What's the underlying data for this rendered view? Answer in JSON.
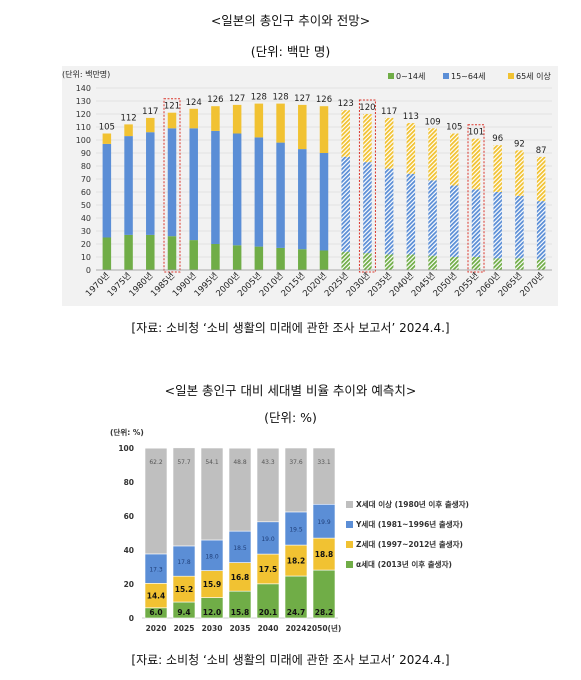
{
  "chart1": {
    "title": "<일본의 총인구 추이와 전망>",
    "subtitle": "(단위: 백만 명)",
    "unit_label": "(단위: 백만명)",
    "source": "[자료: 소비청 ‘소비 생활의 미래에 관한 조사 보고서’ 2024.4.]"
  },
  "chart2": {
    "title": "<일본 총인구 대비 세대별 비율 추이와 예측치>",
    "subtitle": "(단위: %)",
    "unit_label": "(단위: %)",
    "source": "[자료: 소비청 ‘소비 생활의 미래에 관한 조사 보고서’ 2024.4.]"
  },
  "colors": {
    "green": "#70ad47",
    "blue": "#5b8ed6",
    "yellow": "#f1c232",
    "gray": "#bfbfbf",
    "highlight": "#d9342b"
  },
  "chart_data": [
    {
      "type": "bar",
      "stacked": true,
      "title": "<일본의 총인구 추이와 전망>",
      "ylabel": "(단위: 백만명)",
      "ylim": [
        0,
        140
      ],
      "yticks": [
        0,
        10,
        20,
        30,
        40,
        50,
        60,
        70,
        80,
        90,
        100,
        110,
        120,
        130,
        140
      ],
      "grid": true,
      "legend_position": "top-right",
      "categories": [
        "1970년",
        "1975년",
        "1980년",
        "1985년",
        "1990년",
        "1995년",
        "2000년",
        "2005년",
        "2010년",
        "2015년",
        "2020년",
        "2025년",
        "2030년",
        "2035년",
        "2040년",
        "2045년",
        "2050년",
        "2055년",
        "2060년",
        "2065년",
        "2070년"
      ],
      "totals": [
        105,
        112,
        117,
        121,
        124,
        126,
        127,
        128,
        128,
        127,
        126,
        123,
        120,
        117,
        113,
        109,
        105,
        101,
        96,
        92,
        87
      ],
      "projection_from": "2025년",
      "highlighted": [
        "1985년",
        "2030년",
        "2055년"
      ],
      "series": [
        {
          "name": "0~14세",
          "values": [
            25,
            27,
            27,
            26,
            23,
            20,
            19,
            18,
            17,
            16,
            15,
            14,
            13,
            12,
            12,
            11,
            10,
            10,
            9,
            9,
            8
          ]
        },
        {
          "name": "15~64세",
          "values": [
            72,
            76,
            79,
            83,
            86,
            87,
            86,
            84,
            81,
            77,
            75,
            73,
            70,
            66,
            62,
            58,
            55,
            52,
            51,
            48,
            45
          ]
        },
        {
          "name": "65세 이상",
          "values": [
            8,
            9,
            11,
            12,
            15,
            19,
            22,
            26,
            30,
            34,
            36,
            36,
            37,
            39,
            39,
            40,
            40,
            39,
            36,
            35,
            34
          ]
        }
      ]
    },
    {
      "type": "bar",
      "stacked": true,
      "title": "<일본 총인구 대비 세대별 비율 추이와 예측치>",
      "ylabel": "(단위: %)",
      "ylim": [
        0,
        100
      ],
      "yticks": [
        0,
        20,
        40,
        60,
        80,
        100
      ],
      "legend_position": "right",
      "categories": [
        "2020",
        "2025",
        "2030",
        "2035",
        "2040",
        "2024",
        "2050(년)"
      ],
      "series": [
        {
          "name": "α세대 (2013년 이후 출생자)",
          "values": [
            6.0,
            9.4,
            12.0,
            15.8,
            20.1,
            24.7,
            28.2
          ]
        },
        {
          "name": "Z세대 (1997~2012년 출생자)",
          "values": [
            14.4,
            15.2,
            15.9,
            16.8,
            17.5,
            18.2,
            18.8
          ]
        },
        {
          "name": "Y세대 (1981~1996년 출생자)",
          "values": [
            17.3,
            17.8,
            18.0,
            18.5,
            19.0,
            19.5,
            19.9
          ]
        },
        {
          "name": "X세대 이상 (1980년 이후 출생자)",
          "values": [
            62.2,
            57.7,
            54.1,
            48.8,
            43.3,
            37.6,
            33.1
          ]
        }
      ]
    }
  ]
}
